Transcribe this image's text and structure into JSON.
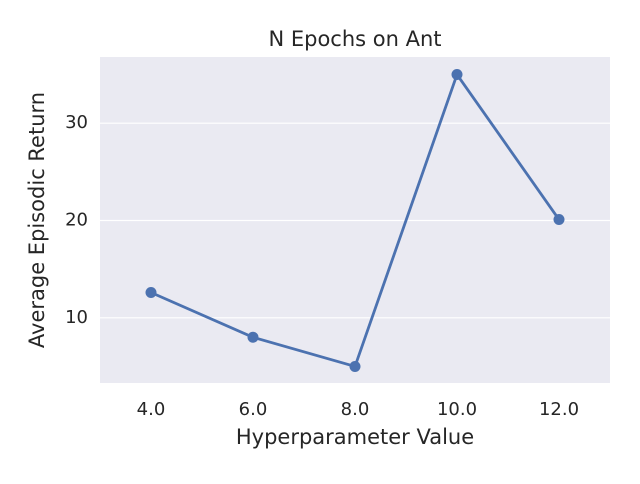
{
  "chart_data": {
    "type": "line",
    "title": "N Epochs on Ant",
    "x_label": "Hyperparameter Value",
    "y_label": "Average Episodic Return",
    "categories": [
      "4.0",
      "6.0",
      "8.0",
      "10.0",
      "12.0"
    ],
    "series": [
      {
        "name": "N Epochs",
        "color": "#4c72b0",
        "values": [
          12.6,
          8.0,
          5.0,
          35.0,
          20.1
        ]
      }
    ],
    "ylim": [
      3.3,
      36.8
    ],
    "yticks": [
      10,
      20,
      30
    ],
    "grid": true
  }
}
